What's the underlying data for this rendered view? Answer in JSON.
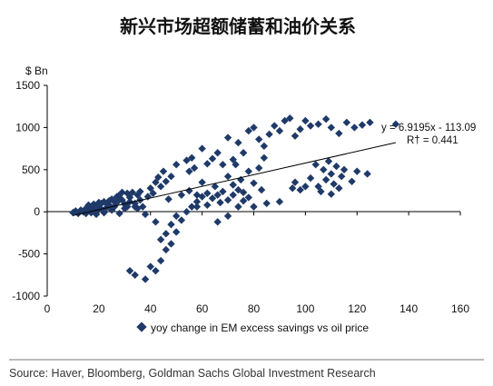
{
  "chart_data": {
    "type": "scatter",
    "title": "新兴市场超额储蓄和油价关系",
    "y_unit": "$ Bn",
    "xlim": [
      0,
      160
    ],
    "ylim": [
      -1000,
      1500
    ],
    "x_ticks": [
      "0",
      "20",
      "40",
      "60",
      "80",
      "100",
      "120",
      "140",
      "160"
    ],
    "y_ticks": [
      "1500",
      "1000",
      "500",
      "0",
      "-500",
      "-1000"
    ],
    "grid": false,
    "legend_position": "bottom",
    "series": [
      {
        "name": "yoy change in EM excess savings vs oil price",
        "color": "#1f3a68",
        "points": [
          [
            10,
            -10
          ],
          [
            11,
            10
          ],
          [
            12,
            -20
          ],
          [
            13,
            20
          ],
          [
            14,
            0
          ],
          [
            15,
            40
          ],
          [
            15,
            -20
          ],
          [
            16,
            30
          ],
          [
            17,
            60
          ],
          [
            17,
            -10
          ],
          [
            18,
            90
          ],
          [
            19,
            20
          ],
          [
            19,
            -30
          ],
          [
            20,
            70
          ],
          [
            21,
            100
          ],
          [
            21,
            30
          ],
          [
            22,
            120
          ],
          [
            22,
            -10
          ],
          [
            23,
            50
          ],
          [
            24,
            130
          ],
          [
            24,
            80
          ],
          [
            25,
            150
          ],
          [
            25,
            20
          ],
          [
            26,
            60
          ],
          [
            27,
            110
          ],
          [
            27,
            180
          ],
          [
            28,
            -20
          ],
          [
            28,
            200
          ],
          [
            29,
            140
          ],
          [
            30,
            90
          ],
          [
            30,
            40
          ],
          [
            31,
            220
          ],
          [
            32,
            170
          ],
          [
            33,
            230
          ],
          [
            34,
            100
          ],
          [
            35,
            200
          ],
          [
            35,
            40
          ],
          [
            36,
            140
          ],
          [
            37,
            60
          ],
          [
            38,
            -30
          ],
          [
            28,
            160
          ],
          [
            32,
            120
          ],
          [
            34,
            60
          ],
          [
            26,
            120
          ],
          [
            29,
            230
          ],
          [
            31,
            60
          ],
          [
            23,
            100
          ],
          [
            20,
            110
          ],
          [
            18,
            40
          ],
          [
            16,
            80
          ],
          [
            36,
            240
          ],
          [
            39,
            180
          ],
          [
            40,
            280
          ],
          [
            41,
            220
          ],
          [
            42,
            350
          ],
          [
            42,
            -120
          ],
          [
            43,
            410
          ],
          [
            44,
            300
          ],
          [
            45,
            480
          ],
          [
            46,
            360
          ],
          [
            47,
            150
          ],
          [
            48,
            420
          ],
          [
            50,
            560
          ],
          [
            52,
            200
          ],
          [
            54,
            610
          ],
          [
            55,
            480
          ],
          [
            56,
            640
          ],
          [
            57,
            520
          ],
          [
            58,
            200
          ],
          [
            60,
            750
          ],
          [
            62,
            570
          ],
          [
            64,
            630
          ],
          [
            66,
            700
          ],
          [
            68,
            560
          ],
          [
            70,
            880
          ],
          [
            72,
            620
          ],
          [
            74,
            820
          ],
          [
            76,
            700
          ],
          [
            78,
            960
          ],
          [
            80,
            1000
          ],
          [
            82,
            860
          ],
          [
            84,
            780
          ],
          [
            86,
            920
          ],
          [
            88,
            1020
          ],
          [
            90,
            960
          ],
          [
            92,
            1080
          ],
          [
            94,
            1110
          ],
          [
            96,
            900
          ],
          [
            98,
            980
          ],
          [
            100,
            1080
          ],
          [
            102,
            1020
          ],
          [
            105,
            1040
          ],
          [
            108,
            1100
          ],
          [
            110,
            1000
          ],
          [
            113,
            930
          ],
          [
            116,
            1060
          ],
          [
            119,
            1000
          ],
          [
            122,
            1030
          ],
          [
            125,
            1060
          ],
          [
            135,
            1040
          ],
          [
            105,
            300
          ],
          [
            107,
            500
          ],
          [
            108,
            380
          ],
          [
            109,
            600
          ],
          [
            110,
            450
          ],
          [
            111,
            330
          ],
          [
            112,
            540
          ],
          [
            113,
            280
          ],
          [
            114,
            420
          ],
          [
            104,
            560
          ],
          [
            106,
            240
          ],
          [
            110,
            210
          ],
          [
            115,
            500
          ],
          [
            118,
            360
          ],
          [
            120,
            480
          ],
          [
            96,
            350
          ],
          [
            100,
            300
          ],
          [
            102,
            400
          ],
          [
            98,
            260
          ],
          [
            124,
            450
          ],
          [
            32,
            -700
          ],
          [
            34,
            -750
          ],
          [
            38,
            -800
          ],
          [
            40,
            -650
          ],
          [
            42,
            -700
          ],
          [
            44,
            -580
          ],
          [
            46,
            -450
          ],
          [
            48,
            -380
          ],
          [
            50,
            -240
          ],
          [
            52,
            -100
          ],
          [
            54,
            0
          ],
          [
            56,
            60
          ],
          [
            58,
            120
          ],
          [
            60,
            180
          ],
          [
            62,
            220
          ],
          [
            64,
            160
          ],
          [
            66,
            200
          ],
          [
            68,
            240
          ],
          [
            70,
            140
          ],
          [
            72,
            200
          ],
          [
            74,
            260
          ],
          [
            76,
            230
          ],
          [
            78,
            170
          ],
          [
            80,
            60
          ],
          [
            85,
            100
          ],
          [
            90,
            120
          ],
          [
            48,
            -150
          ],
          [
            50,
            -50
          ],
          [
            44,
            -330
          ],
          [
            46,
            -260
          ],
          [
            60,
            350
          ],
          [
            65,
            300
          ],
          [
            70,
            420
          ],
          [
            75,
            380
          ],
          [
            80,
            340
          ],
          [
            55,
            250
          ],
          [
            58,
            60
          ],
          [
            62,
            80
          ],
          [
            67,
            110
          ],
          [
            72,
            320
          ],
          [
            76,
            130
          ],
          [
            83,
            260
          ],
          [
            95,
            280
          ],
          [
            66,
            -120
          ],
          [
            70,
            -50
          ],
          [
            74,
            60
          ],
          [
            73,
            560
          ],
          [
            78,
            480
          ],
          [
            82,
            520
          ],
          [
            84,
            640
          ]
        ]
      }
    ],
    "trendline": {
      "equation": "y = 6.9195x - 113.09",
      "r_squared": "R† = 0.441",
      "slope": 6.9195,
      "intercept": -113.09,
      "x_range": [
        10,
        135
      ]
    }
  },
  "source_text": "Source: Haver, Bloomberg, Goldman Sachs Global Investment Research"
}
